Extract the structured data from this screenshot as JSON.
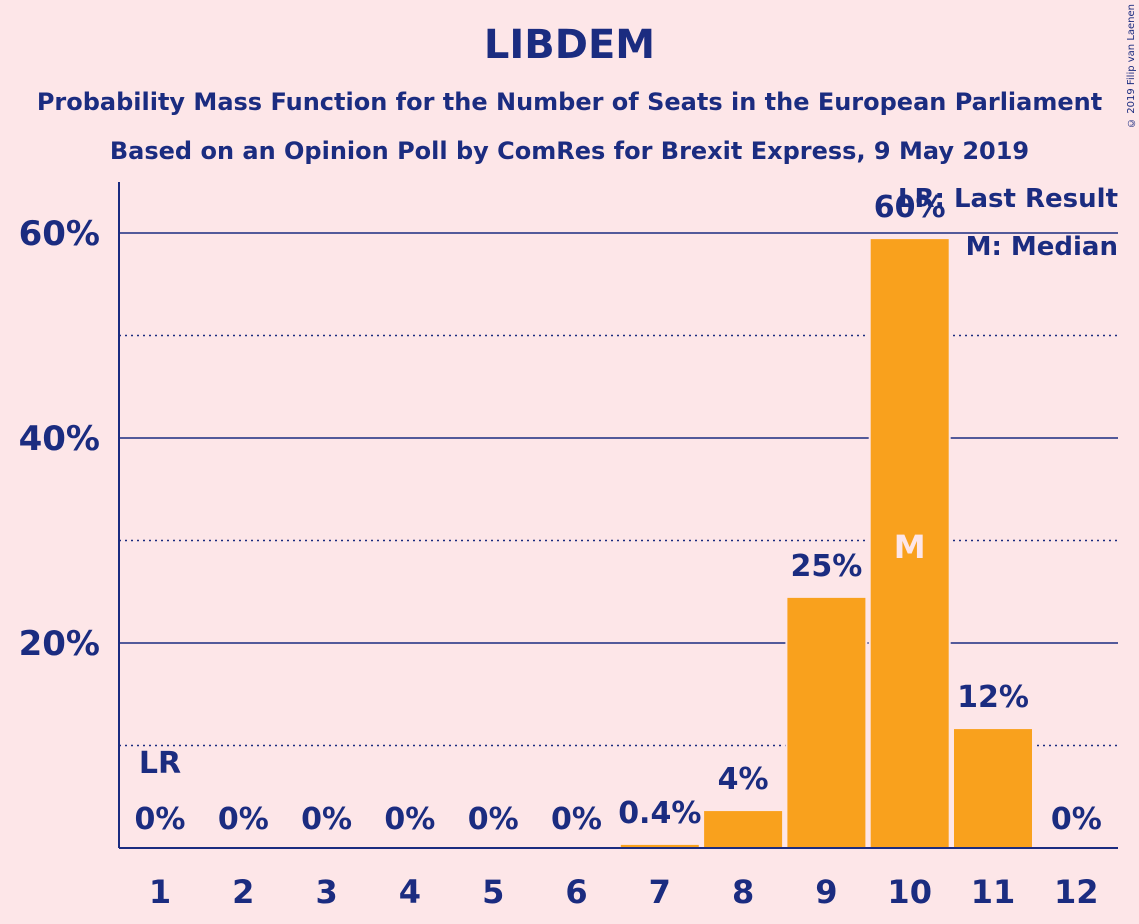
{
  "header": {
    "title": "LIBDEM",
    "subtitle1": "Probability Mass Function for the Number of Seats in the European Parliament",
    "subtitle2": "Based on an Opinion Poll by ComRes for Brexit Express, 9 May 2019",
    "copyright": "© 2019 Filip van Laenen"
  },
  "legend": {
    "lr": "LR: Last Result",
    "m": "M: Median"
  },
  "colors": {
    "background": "#fde6e8",
    "text": "#1b2c80",
    "bar": "#f9a11d",
    "median_label": "#fde6e8"
  },
  "chart_data": {
    "type": "bar",
    "categories": [
      "1",
      "2",
      "3",
      "4",
      "5",
      "6",
      "7",
      "8",
      "9",
      "10",
      "11",
      "12"
    ],
    "values": [
      0,
      0,
      0,
      0,
      0,
      0,
      0.4,
      3.7,
      24.5,
      59.5,
      11.7,
      0
    ],
    "labels": [
      "0%",
      "0%",
      "0%",
      "0%",
      "0%",
      "0%",
      "0.4%",
      "4%",
      "25%",
      "60%",
      "12%",
      "0%"
    ],
    "ylim": [
      0,
      65
    ],
    "yticks": [
      20,
      40,
      60
    ],
    "ytick_labels": [
      "20%",
      "40%",
      "60%"
    ],
    "minor_gridlines": [
      10,
      30,
      50
    ],
    "last_result_index": 0,
    "last_result_label": "LR",
    "median_index": 9,
    "median_label": "M"
  }
}
